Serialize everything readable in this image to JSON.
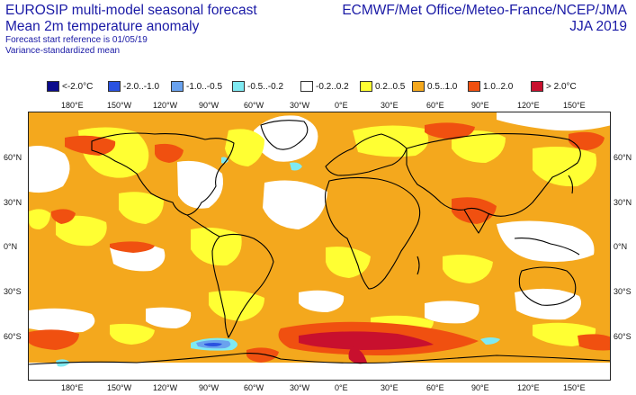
{
  "title": {
    "line1": "EUROSIP multi-model seasonal forecast",
    "line2": "Mean 2m temperature anomaly",
    "line3": "Forecast start reference is 01/05/19",
    "line4": "Variance-standardized mean"
  },
  "source": {
    "agencies": "ECMWF/Met Office/Meteo-France/NCEP/JMA",
    "period": "JJA 2019"
  },
  "legend": [
    {
      "label": "<-2.0°C",
      "color": "#0b0b8c"
    },
    {
      "label": "-2.0..-1.0",
      "color": "#2a52e0"
    },
    {
      "label": "-1.0..-0.5",
      "color": "#6aa2ee"
    },
    {
      "label": "-0.5..-0.2",
      "color": "#7feaf2"
    },
    {
      "label": "-0.2..0.2",
      "color": "#ffffff"
    },
    {
      "label": "0.2..0.5",
      "color": "#ffff33"
    },
    {
      "label": "0.5..1.0",
      "color": "#f4a81d"
    },
    {
      "label": "1.0..2.0",
      "color": "#f05010"
    },
    {
      "label": "> 2.0°C",
      "color": "#c8102e"
    }
  ],
  "longitude_labels": [
    "180°E",
    "150°W",
    "120°W",
    "90°W",
    "60°W",
    "30°W",
    "0°E",
    "30°E",
    "60°E",
    "90°E",
    "120°E",
    "150°E"
  ],
  "latitude_labels": [
    "60°N",
    "30°N",
    "0°N",
    "30°S",
    "60°S"
  ]
}
